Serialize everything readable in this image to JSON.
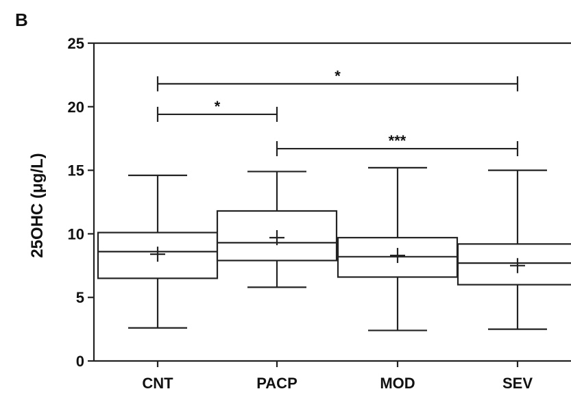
{
  "panel_label": "B",
  "chart_data": {
    "type": "box",
    "ylabel": "25OHC (μg/L)",
    "xlabel": "",
    "ylim": [
      0,
      25
    ],
    "yticks": [
      0,
      5,
      10,
      15,
      20,
      25
    ],
    "categories": [
      "CNT",
      "PACP",
      "MOD",
      "SEV"
    ],
    "boxes": [
      {
        "name": "CNT",
        "min": 2.6,
        "q1": 6.5,
        "median": 8.6,
        "q3": 10.1,
        "max": 14.6,
        "mean": 8.4
      },
      {
        "name": "PACP",
        "min": 5.8,
        "q1": 7.9,
        "median": 9.3,
        "q3": 11.8,
        "max": 14.9,
        "mean": 9.7
      },
      {
        "name": "MOD",
        "min": 2.4,
        "q1": 6.6,
        "median": 8.2,
        "q3": 9.7,
        "max": 15.2,
        "mean": 8.3
      },
      {
        "name": "SEV",
        "min": 2.5,
        "q1": 6.0,
        "median": 7.7,
        "q3": 9.2,
        "max": 15.0,
        "mean": 7.5
      }
    ],
    "significance": [
      {
        "from": "CNT",
        "to": "SEV",
        "y": 21.8,
        "label": "*"
      },
      {
        "from": "CNT",
        "to": "PACP",
        "y": 19.4,
        "label": "*"
      },
      {
        "from": "PACP",
        "to": "SEV",
        "y": 16.7,
        "label": "***"
      }
    ],
    "grid": false,
    "legend": "none"
  }
}
